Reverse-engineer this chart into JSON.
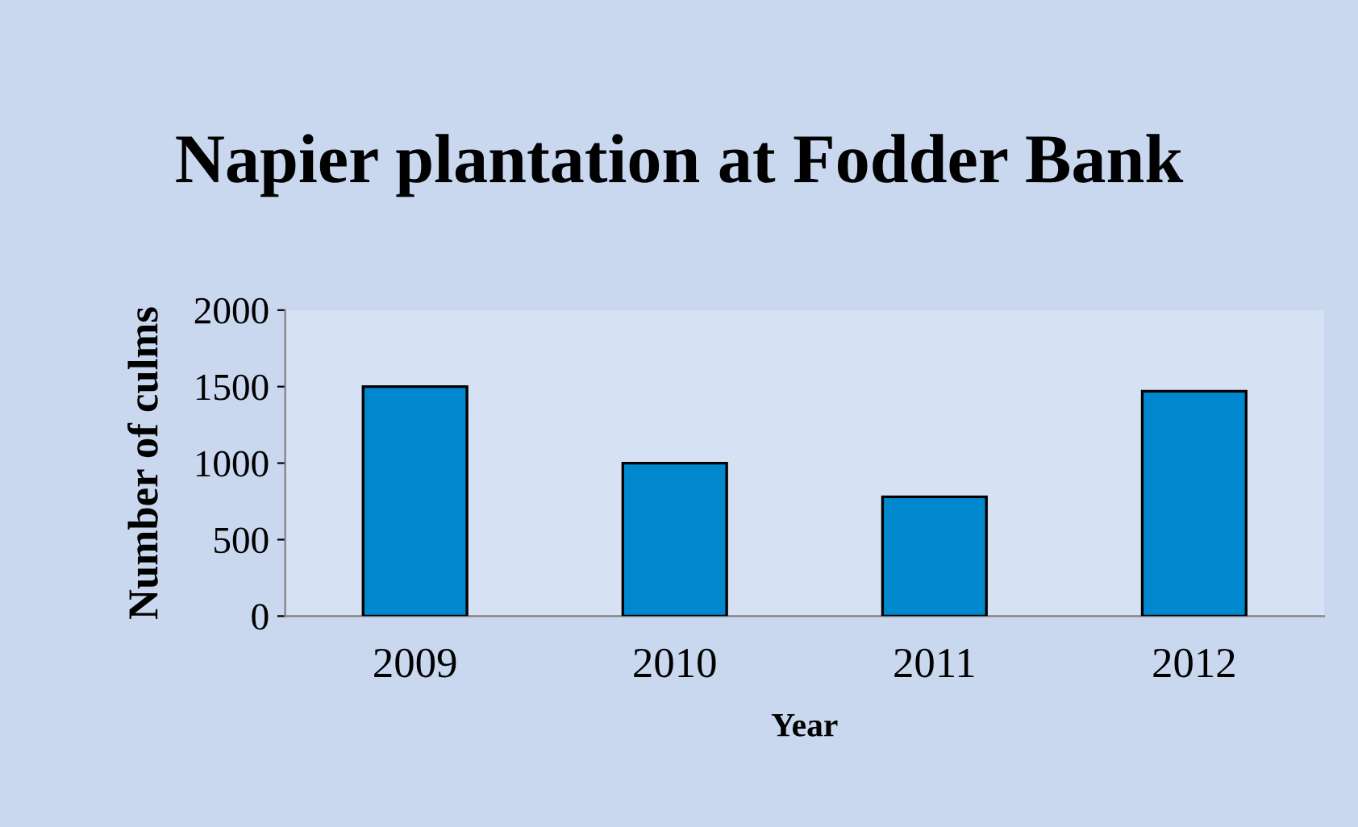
{
  "chart_data": {
    "type": "bar",
    "title": "Napier plantation at Fodder Bank",
    "xlabel": "Year",
    "ylabel": "Number of culms",
    "categories": [
      "2009",
      "2010",
      "2011",
      "2012"
    ],
    "values": [
      1500,
      1000,
      780,
      1470
    ],
    "color": "#0088cf",
    "ylim": [
      0,
      2000
    ],
    "yticks": [
      0,
      500,
      1000,
      1500,
      2000
    ],
    "grid": false,
    "legend": false
  }
}
